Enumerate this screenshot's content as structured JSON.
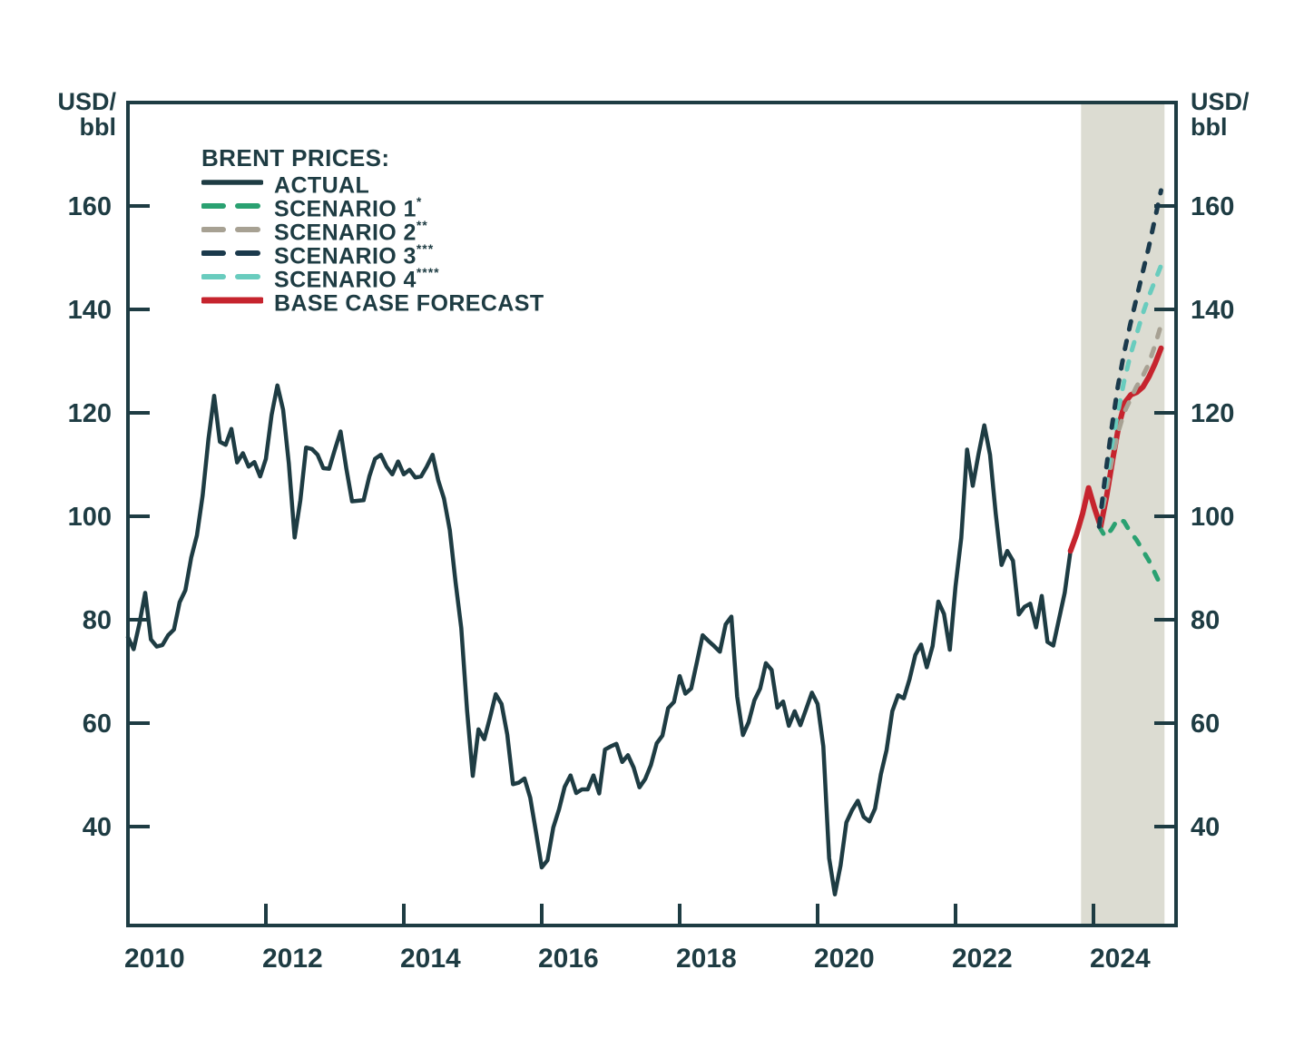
{
  "colors": {
    "ink": "#1e3c43",
    "background": "#ffffff",
    "band": "#dcdcd2"
  },
  "legend": {
    "title": "BRENT PRICES:",
    "items": [
      {
        "id": "actual",
        "label": "ACTUAL",
        "sup": "",
        "color": "#1e3c43",
        "style": "solid",
        "width": 4.5
      },
      {
        "id": "scenario1",
        "label": "SCENARIO 1",
        "sup": "*",
        "color": "#2aa171",
        "style": "dashed",
        "width": 5
      },
      {
        "id": "scenario2",
        "label": "SCENARIO 2",
        "sup": "**",
        "color": "#a7a193",
        "style": "dashed",
        "width": 5
      },
      {
        "id": "scenario3",
        "label": "SCENARIO 3",
        "sup": "***",
        "color": "#1b3a4c",
        "style": "dashed",
        "width": 5
      },
      {
        "id": "scenario4",
        "label": "SCENARIO 4",
        "sup": "****",
        "color": "#69ccbe",
        "style": "dashed",
        "width": 5
      },
      {
        "id": "base",
        "label": "BASE CASE FORECAST",
        "sup": "",
        "color": "#c6242e",
        "style": "solid",
        "width": 6
      }
    ]
  },
  "axis_units": {
    "left": [
      "USD/",
      "bbl"
    ],
    "right": [
      "USD/",
      "bbl"
    ]
  },
  "chart_data": {
    "type": "line",
    "title": "BRENT PRICES:",
    "xlabel": "",
    "ylabel": "USD/bbl",
    "grid": false,
    "legend_position": "top-left-inside",
    "x_axis": {
      "tick_labels": [
        "2010",
        "2012",
        "2014",
        "2016",
        "2018",
        "2020",
        "2022",
        "2024"
      ],
      "tick_values": [
        2010,
        2012,
        2014,
        2016,
        2018,
        2020,
        2022,
        2024
      ],
      "range": [
        2010,
        2025.2
      ]
    },
    "y_axis": {
      "unit": "USD/bbl",
      "tick_values": [
        40,
        60,
        80,
        100,
        120,
        140,
        160
      ],
      "range": [
        21,
        180
      ],
      "labels_on": "both"
    },
    "forecast_band": {
      "from": 2023.82,
      "to": 2025.03,
      "color": "#dcdcd2"
    },
    "series": [
      {
        "name": "ACTUAL",
        "color": "#1e3c43",
        "style": "solid",
        "width": 4.5,
        "t_start": 2010.0,
        "t_end": 2023.6667,
        "values": [
          76.6,
          74.3,
          79.3,
          85.2,
          76.2,
          74.8,
          75.1,
          77.0,
          78.1,
          83.4,
          85.7,
          92.0,
          96.3,
          104.0,
          114.9,
          123.3,
          114.4,
          113.8,
          116.9,
          110.4,
          112.2,
          109.6,
          110.5,
          107.7,
          111.1,
          119.6,
          125.3,
          120.6,
          110.2,
          95.9,
          103.1,
          113.3,
          113.0,
          111.9,
          109.3,
          109.2,
          112.9,
          116.4,
          109.2,
          102.9,
          103.0,
          103.1,
          107.7,
          111.1,
          111.9,
          109.6,
          108.1,
          110.6,
          108.1,
          109.0,
          107.5,
          107.7,
          109.6,
          111.9,
          106.9,
          103.4,
          97.3,
          87.3,
          78.4,
          62.5,
          49.8,
          58.8,
          56.9,
          61.1,
          65.6,
          63.7,
          57.8,
          48.2,
          48.5,
          49.3,
          45.6,
          38.9,
          32.1,
          33.5,
          39.8,
          43.3,
          47.7,
          49.9,
          46.5,
          47.2,
          47.2,
          49.9,
          46.4,
          54.9,
          55.5,
          56.0,
          52.5,
          53.8,
          51.4,
          47.6,
          49.2,
          51.9,
          56.1,
          57.6,
          62.9,
          64.1,
          69.1,
          65.7,
          66.7,
          71.8,
          77.0,
          75.9,
          74.9,
          73.8,
          79.1,
          80.6,
          65.2,
          57.7,
          60.2,
          64.4,
          66.7,
          71.6,
          70.3,
          63.0,
          64.2,
          59.5,
          62.3,
          59.6,
          62.7,
          65.9,
          63.7,
          55.5,
          33.9,
          26.9,
          32.5,
          40.8,
          43.2,
          45.0,
          41.9,
          41.0,
          43.5,
          50.1,
          54.8,
          62.3,
          65.4,
          64.8,
          68.5,
          73.2,
          75.2,
          70.8,
          74.9,
          83.5,
          81.1,
          74.2,
          86.5,
          95.8,
          112.9,
          105.9,
          112.0,
          117.6,
          111.9,
          100.5,
          90.6,
          93.3,
          91.4,
          81.0,
          82.5,
          83.1,
          78.5,
          84.6,
          75.7,
          75.0,
          80.1,
          85.2,
          93.3
        ]
      },
      {
        "name": "BASE CASE FORECAST",
        "color": "#c6242e",
        "style": "solid",
        "width": 6,
        "t_start": 2023.6667,
        "t_end": 2024.98,
        "values": [
          93.3,
          96.5,
          100.5,
          105.5,
          101.5,
          98.0,
          104.0,
          111.0,
          117.5,
          122.0,
          123.5,
          124.0,
          125.0,
          127.0,
          129.5,
          132.5
        ]
      },
      {
        "name": "SCENARIO 1",
        "color": "#2aa171",
        "style": "dashed",
        "width": 5,
        "t_start": 2024.0833,
        "t_end": 2024.98,
        "values": [
          98.0,
          96.0,
          97.5,
          99.5,
          99.0,
          97.0,
          95.5,
          93.5,
          91.5,
          89.0,
          86.5
        ]
      },
      {
        "name": "SCENARIO 2",
        "color": "#a7a193",
        "style": "dashed",
        "width": 5,
        "t_start": 2024.0833,
        "t_end": 2024.98,
        "values": [
          98.0,
          104.0,
          110.5,
          116.0,
          120.0,
          122.5,
          125.0,
          127.0,
          129.5,
          133.0,
          137.0
        ]
      },
      {
        "name": "SCENARIO 4",
        "color": "#69ccbe",
        "style": "dashed",
        "width": 5,
        "t_start": 2024.0833,
        "t_end": 2024.98,
        "values": [
          98.0,
          106.0,
          113.5,
          120.0,
          126.0,
          131.0,
          135.0,
          139.0,
          142.5,
          145.5,
          148.5
        ]
      },
      {
        "name": "SCENARIO 3",
        "color": "#1b3a4c",
        "style": "dashed",
        "width": 5,
        "t_start": 2024.0833,
        "t_end": 2024.98,
        "values": [
          98.0,
          108.0,
          117.0,
          125.0,
          131.5,
          137.0,
          142.0,
          147.0,
          152.0,
          157.5,
          163.0
        ]
      }
    ]
  }
}
